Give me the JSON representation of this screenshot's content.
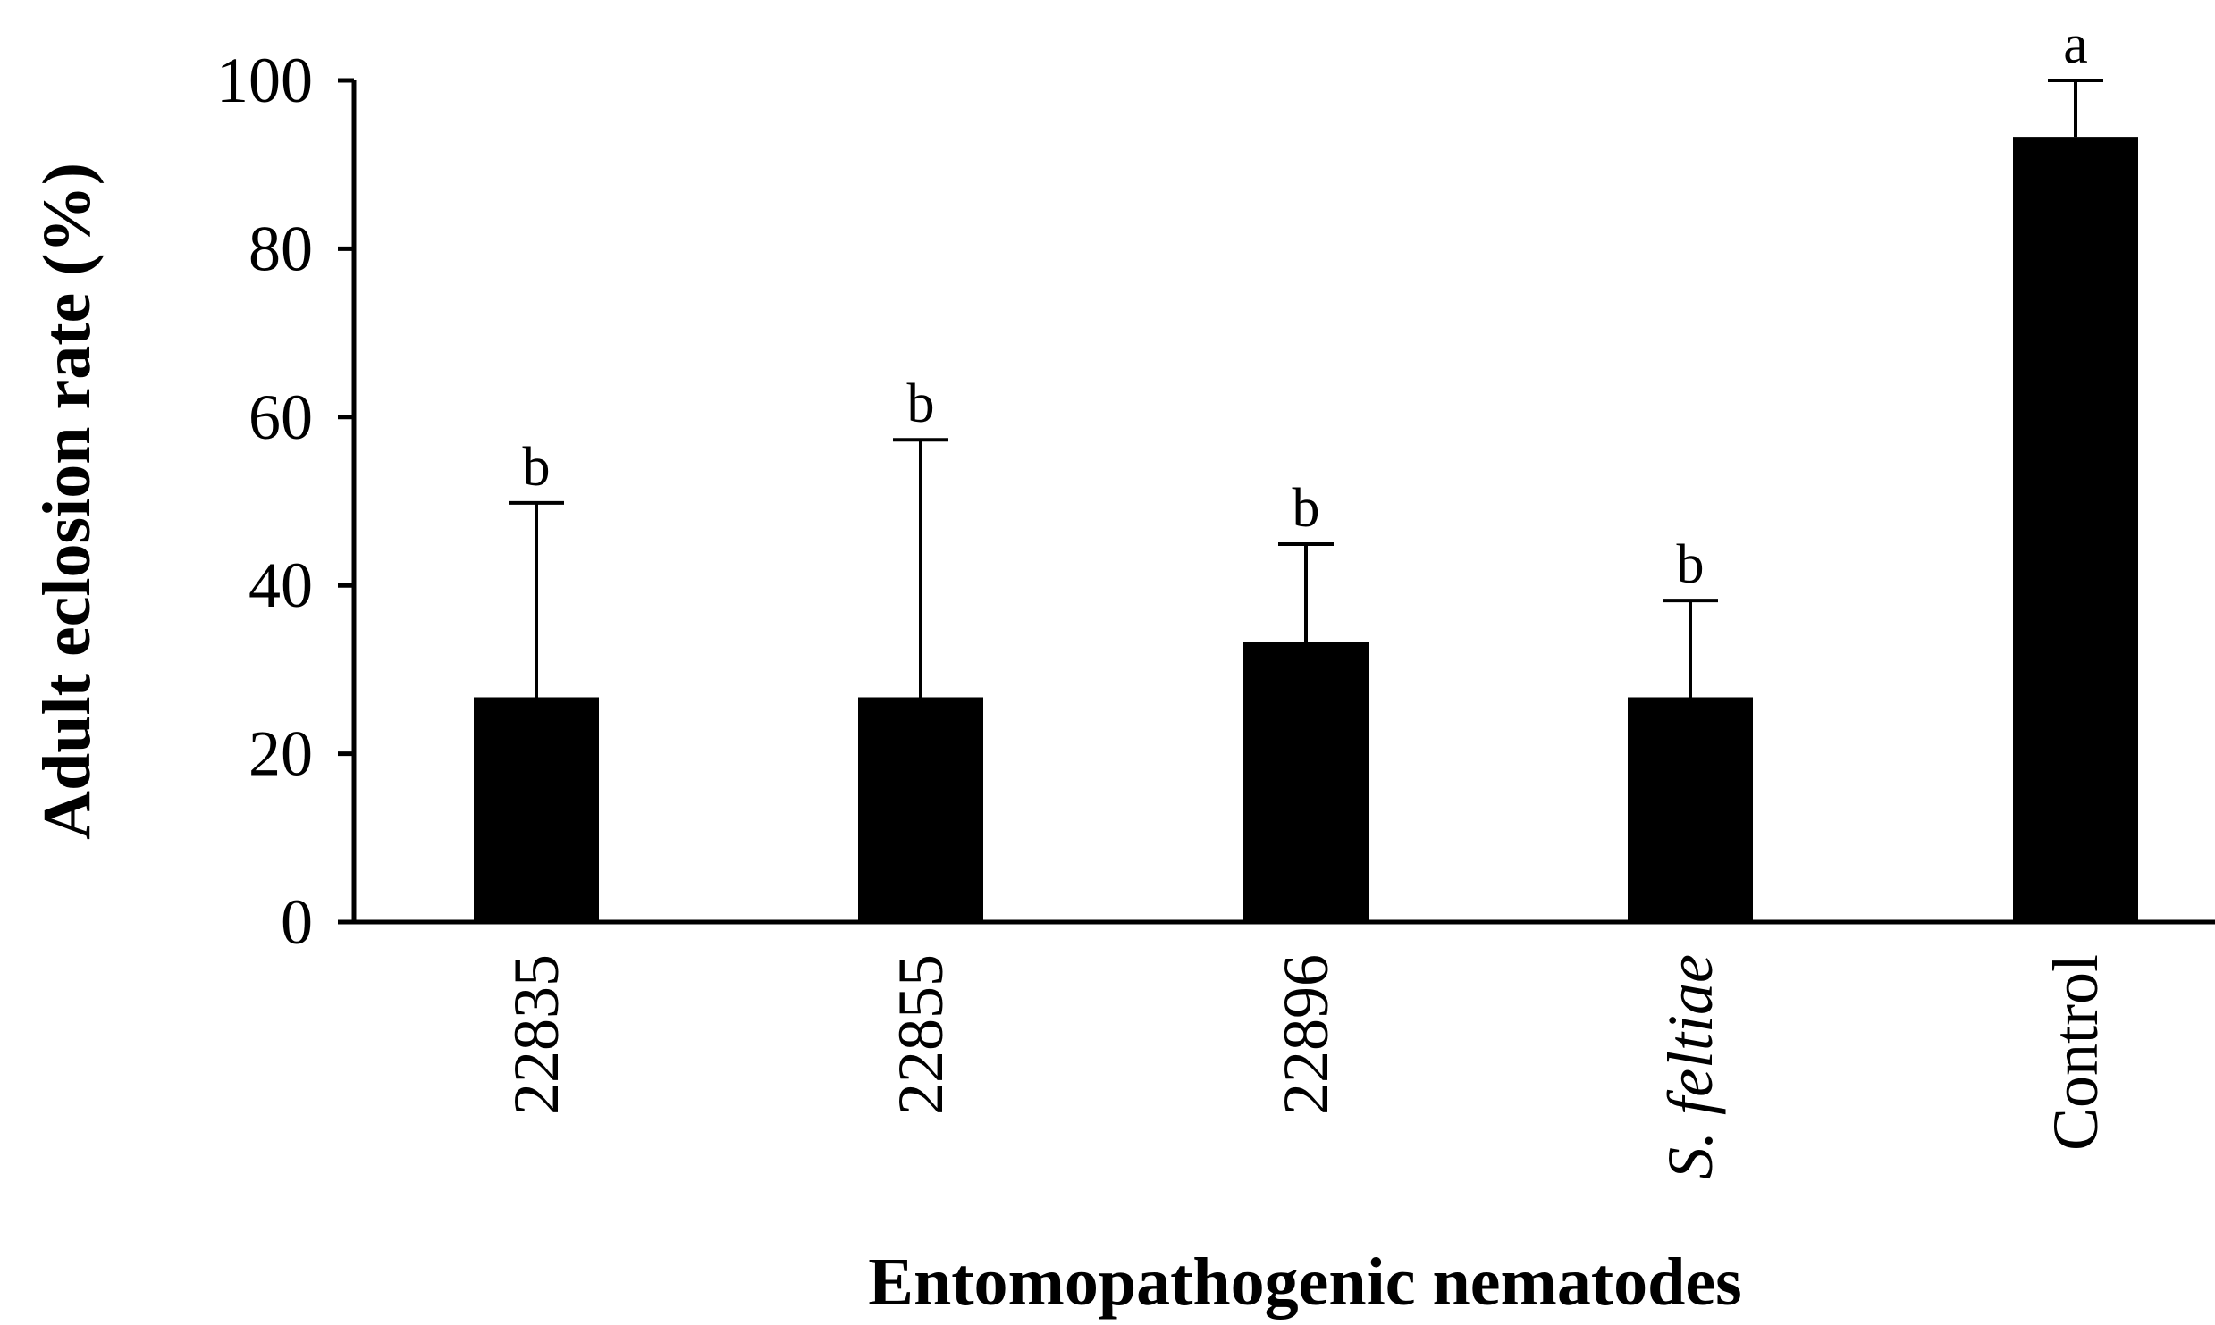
{
  "chart_data": {
    "type": "bar",
    "title": "",
    "xlabel": "Entomopathogenic nematodes",
    "ylabel": "Adult eclosion rate (%)",
    "ylim": [
      0,
      100
    ],
    "yticks": [
      "0",
      "20",
      "40",
      "60",
      "80",
      "100"
    ],
    "categories": [
      "22835",
      "22855",
      "22896",
      "S. feltiae",
      "Control"
    ],
    "category_italic": [
      false,
      false,
      false,
      true,
      false
    ],
    "values": [
      26.7,
      26.7,
      33.3,
      26.7,
      93.3
    ],
    "error_upper": [
      49.8,
      57.3,
      44.9,
      38.2,
      100
    ],
    "significance": [
      "b",
      "b",
      "b",
      "b",
      "a"
    ],
    "bar_color": "#000000",
    "grid": false,
    "legend": "none"
  }
}
